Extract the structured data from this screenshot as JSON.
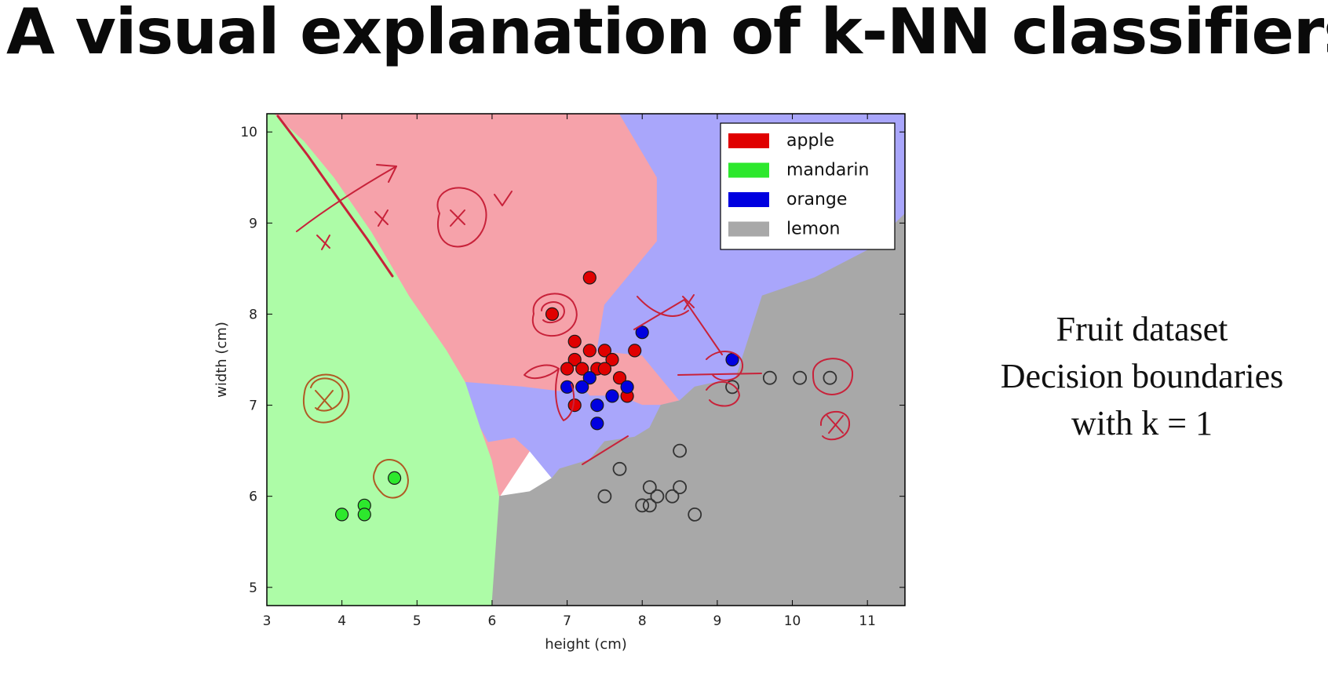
{
  "slide": {
    "title": "A visual explanation of k-NN classifiers",
    "caption": [
      "Fruit dataset",
      "Decision boundaries",
      "with k = 1"
    ]
  },
  "chart_data": {
    "type": "scatter",
    "title": "",
    "xlabel": "height (cm)",
    "ylabel": "width (cm)",
    "xlim": [
      3,
      11.5
    ],
    "ylim": [
      4.8,
      10.2
    ],
    "xticks": [
      3,
      4,
      5,
      6,
      7,
      8,
      9,
      10,
      11
    ],
    "yticks": [
      5,
      6,
      7,
      8,
      9,
      10
    ],
    "grid": false,
    "legend": {
      "placement": "top-right",
      "entries": [
        "apple",
        "mandarin",
        "orange",
        "lemon"
      ]
    },
    "colors": {
      "apple": "#e00000",
      "mandarin": "#2de82d",
      "orange": "#0000e0",
      "lemon": "#a8a8a8",
      "apple_region": "#f6a2aa",
      "mandarin_region": "#adfca7",
      "orange_region": "#a9a6fb",
      "lemon_region": "#a8a8a8",
      "ink": "#c8223a",
      "ink_brown": "#b05a24"
    },
    "series": [
      {
        "name": "apple",
        "points": [
          [
            7.3,
            8.4
          ],
          [
            6.8,
            8.0
          ],
          [
            7.1,
            7.7
          ],
          [
            7.3,
            7.6
          ],
          [
            7.5,
            7.6
          ],
          [
            7.9,
            7.6
          ],
          [
            7.1,
            7.5
          ],
          [
            7.6,
            7.5
          ],
          [
            7.0,
            7.4
          ],
          [
            7.2,
            7.4
          ],
          [
            7.4,
            7.4
          ],
          [
            7.5,
            7.4
          ],
          [
            7.7,
            7.3
          ],
          [
            7.8,
            7.1
          ],
          [
            7.1,
            7.0
          ]
        ]
      },
      {
        "name": "mandarin",
        "points": [
          [
            4.7,
            6.2
          ],
          [
            4.3,
            5.9
          ],
          [
            4.0,
            5.8
          ],
          [
            4.3,
            5.8
          ]
        ]
      },
      {
        "name": "orange",
        "points": [
          [
            8.0,
            7.8
          ],
          [
            9.2,
            7.5
          ],
          [
            7.3,
            7.3
          ],
          [
            7.0,
            7.2
          ],
          [
            7.2,
            7.2
          ],
          [
            7.8,
            7.2
          ],
          [
            7.6,
            7.1
          ],
          [
            7.4,
            7.0
          ],
          [
            7.4,
            6.8
          ]
        ]
      },
      {
        "name": "lemon",
        "points": [
          [
            9.2,
            7.2
          ],
          [
            9.7,
            7.3
          ],
          [
            10.1,
            7.3
          ],
          [
            10.5,
            7.3
          ],
          [
            8.5,
            6.5
          ],
          [
            7.7,
            6.3
          ],
          [
            8.1,
            6.1
          ],
          [
            8.5,
            6.1
          ],
          [
            7.5,
            6.0
          ],
          [
            8.2,
            6.0
          ],
          [
            8.4,
            6.0
          ],
          [
            8.0,
            5.9
          ],
          [
            8.1,
            5.9
          ],
          [
            8.7,
            5.8
          ]
        ]
      }
    ],
    "regions": [
      {
        "class": "mandarin",
        "polygon": [
          [
            3,
            4.8
          ],
          [
            3,
            10.2
          ],
          [
            3.1,
            10.2
          ],
          [
            3.5,
            9.9
          ],
          [
            3.9,
            9.5
          ],
          [
            4.4,
            8.9
          ],
          [
            4.9,
            8.2
          ],
          [
            5.4,
            7.6
          ],
          [
            5.65,
            7.25
          ],
          [
            5.75,
            7.0
          ],
          [
            5.85,
            6.75
          ],
          [
            6.0,
            6.4
          ],
          [
            6.1,
            6.0
          ],
          [
            6.05,
            5.4
          ],
          [
            6.0,
            4.8
          ]
        ]
      },
      {
        "class": "apple",
        "polygon": [
          [
            3.1,
            10.2
          ],
          [
            7.7,
            10.2
          ],
          [
            8.2,
            9.5
          ],
          [
            8.2,
            8.8
          ],
          [
            7.5,
            8.1
          ],
          [
            7.4,
            7.6
          ],
          [
            8.0,
            7.55
          ],
          [
            8.25,
            7.3
          ],
          [
            8.5,
            7.05
          ],
          [
            8.25,
            6.85
          ],
          [
            8.1,
            6.75
          ],
          [
            7.9,
            6.65
          ],
          [
            7.5,
            6.95
          ],
          [
            7.2,
            6.9
          ],
          [
            6.9,
            6.8
          ],
          [
            6.5,
            6.5
          ],
          [
            6.1,
            6.0
          ],
          [
            6.0,
            6.4
          ],
          [
            5.85,
            6.75
          ],
          [
            5.75,
            7.0
          ],
          [
            5.65,
            7.25
          ],
          [
            5.4,
            7.6
          ],
          [
            4.9,
            8.2
          ],
          [
            4.4,
            8.9
          ],
          [
            3.9,
            9.5
          ],
          [
            3.5,
            9.9
          ]
        ]
      },
      {
        "class": "orange",
        "polygon": [
          [
            7.7,
            10.2
          ],
          [
            11.5,
            10.2
          ],
          [
            11.5,
            9.1
          ],
          [
            11.0,
            8.7
          ],
          [
            10.3,
            8.4
          ],
          [
            9.6,
            8.2
          ],
          [
            9.25,
            7.3
          ],
          [
            8.7,
            7.2
          ],
          [
            8.5,
            7.05
          ],
          [
            8.25,
            7.3
          ],
          [
            8.0,
            7.55
          ],
          [
            7.4,
            7.6
          ],
          [
            7.5,
            8.1
          ],
          [
            8.2,
            8.8
          ],
          [
            8.2,
            9.5
          ]
        ]
      },
      {
        "class": "orange",
        "polygon": [
          [
            5.65,
            7.25
          ],
          [
            6.4,
            7.2
          ],
          [
            6.9,
            7.15
          ],
          [
            7.2,
            7.2
          ],
          [
            7.3,
            7.1
          ],
          [
            7.7,
            7.1
          ],
          [
            8.0,
            7.0
          ],
          [
            8.25,
            7.0
          ],
          [
            8.5,
            7.05
          ],
          [
            8.25,
            6.85
          ],
          [
            8.1,
            6.75
          ],
          [
            7.9,
            6.65
          ],
          [
            7.5,
            6.6
          ],
          [
            7.3,
            6.4
          ],
          [
            6.9,
            6.3
          ],
          [
            6.8,
            6.2
          ],
          [
            6.5,
            6.5
          ],
          [
            6.3,
            6.65
          ],
          [
            5.95,
            6.6
          ],
          [
            5.85,
            6.75
          ],
          [
            5.75,
            7.0
          ]
        ]
      },
      {
        "class": "lemon",
        "polygon": [
          [
            6.0,
            4.8
          ],
          [
            11.5,
            4.8
          ],
          [
            11.5,
            9.1
          ],
          [
            11.0,
            8.7
          ],
          [
            10.3,
            8.4
          ],
          [
            9.6,
            8.2
          ],
          [
            9.25,
            7.3
          ],
          [
            8.7,
            7.2
          ],
          [
            8.5,
            7.05
          ],
          [
            8.25,
            7.0
          ],
          [
            8.1,
            6.75
          ],
          [
            7.9,
            6.65
          ],
          [
            7.5,
            6.6
          ],
          [
            7.3,
            6.4
          ],
          [
            6.9,
            6.3
          ],
          [
            6.8,
            6.2
          ],
          [
            6.5,
            6.05
          ],
          [
            6.1,
            6.0
          ],
          [
            6.05,
            5.4
          ]
        ]
      }
    ]
  }
}
